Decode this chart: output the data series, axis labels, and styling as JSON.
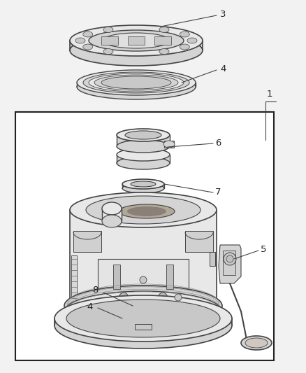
{
  "bg_color": "#f2f2f2",
  "box_color": "#ffffff",
  "line_color": "#444444",
  "dark": "#222222",
  "part_fill": "#e8e8e8",
  "part_fill2": "#d4d4d4",
  "part_fill3": "#c8c8c8"
}
